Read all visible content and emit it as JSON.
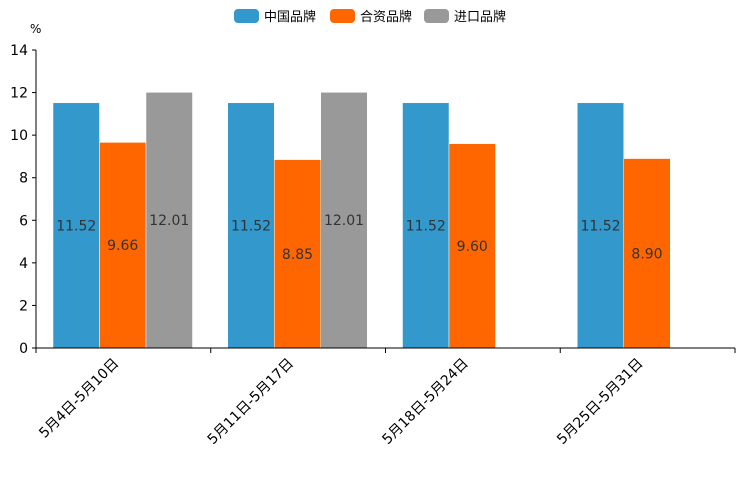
{
  "chart_data": {
    "type": "bar",
    "unit": "%",
    "categories": [
      "5月4日-5月10日",
      "5月11日-5月17日",
      "5月18日-5月24日",
      "5月25日-5月31日"
    ],
    "series": [
      {
        "name": "中国品牌",
        "color": "#3399cc",
        "values": [
          11.52,
          11.52,
          11.52,
          11.52
        ],
        "labels": [
          "11.52",
          "11.52",
          "11.52",
          "11.52"
        ]
      },
      {
        "name": "合资品牌",
        "color": "#ff6600",
        "values": [
          9.66,
          8.85,
          9.6,
          8.9
        ],
        "labels": [
          "9.66",
          "8.85",
          "9.60",
          "8.90"
        ]
      },
      {
        "name": "进口品牌",
        "color": "#999999",
        "values": [
          12.01,
          12.01,
          null,
          null
        ],
        "labels": [
          "12.01",
          "12.01",
          null,
          null
        ]
      }
    ],
    "ylim": [
      0,
      14
    ],
    "yticks": [
      "0",
      "2",
      "4",
      "6",
      "8",
      "10",
      "12",
      "14"
    ],
    "legend_position": "top-center",
    "grid": false
  }
}
